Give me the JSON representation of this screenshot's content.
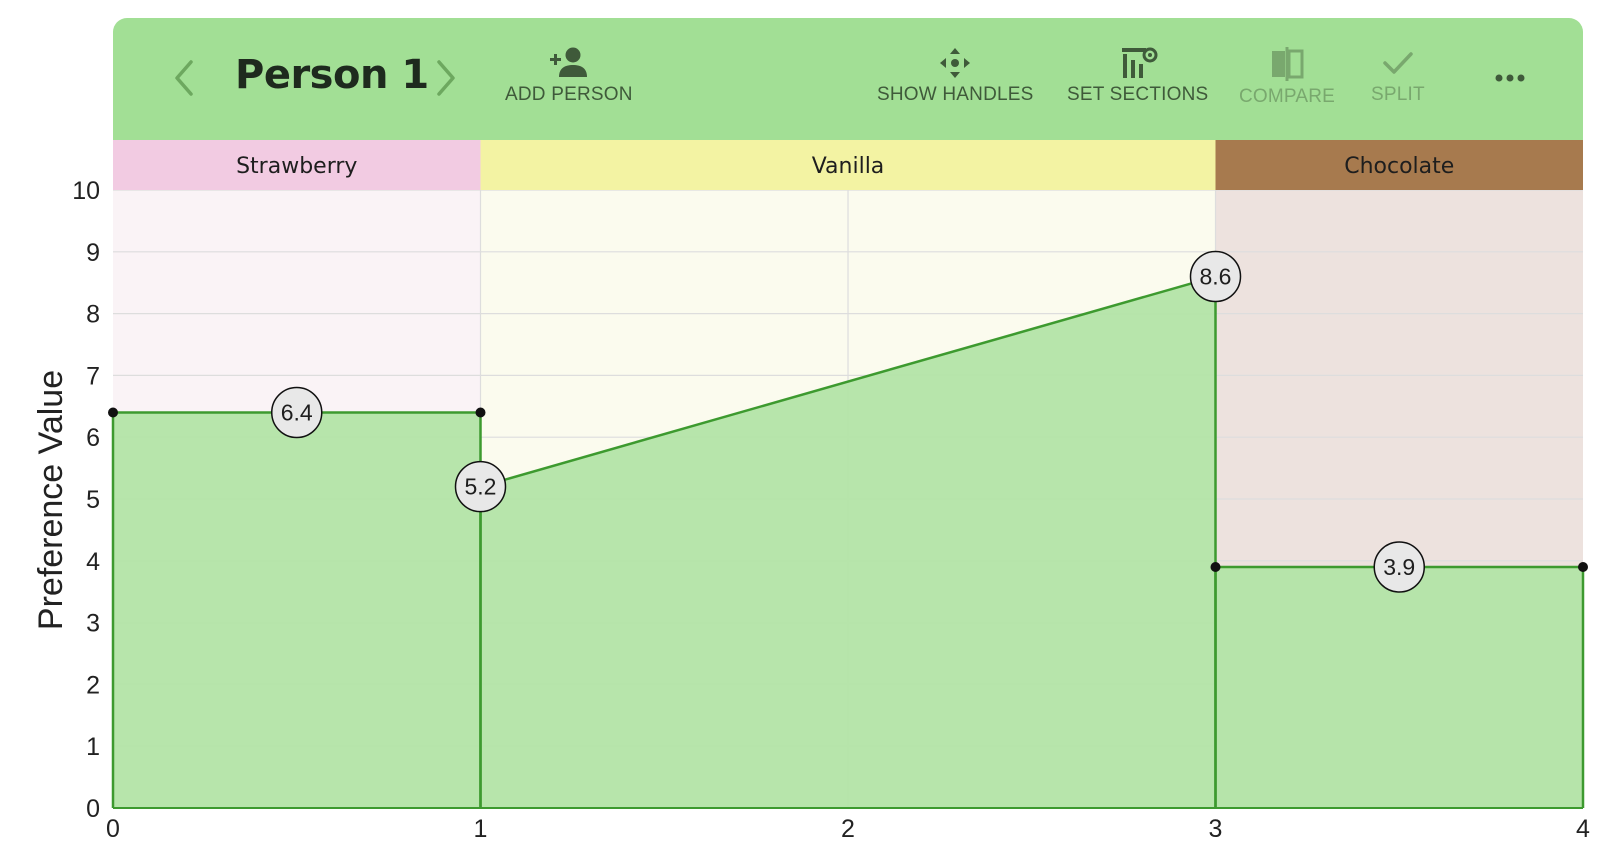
{
  "toolbar": {
    "person_name": "Person 1",
    "prev_icon": "chevron-left-icon",
    "next_icon": "chevron-right-icon",
    "add_person_label": "ADD PERSON",
    "show_handles_label": "SHOW HANDLES",
    "set_sections_label": "SET SECTIONS",
    "compare_label": "COMPARE",
    "split_label": "SPLIT",
    "more_icon": "more-horizontal-icon",
    "background_color": "#a2df95"
  },
  "chart_data": {
    "type": "area",
    "ylabel": "Preference Value",
    "xlim": [
      0,
      4
    ],
    "ylim": [
      0,
      10
    ],
    "x_ticks": [
      "0",
      "1",
      "2",
      "3",
      "4"
    ],
    "y_ticks": [
      "0",
      "1",
      "2",
      "3",
      "4",
      "5",
      "6",
      "7",
      "8",
      "9",
      "10"
    ],
    "grid": true,
    "fill_color": "#b3e4a6",
    "line_color": "#3d9a2f",
    "sections": [
      {
        "label": "Strawberry",
        "start": 0,
        "end": 1,
        "header_color": "#f2cbe2",
        "bg_color": "#faf3f6"
      },
      {
        "label": "Vanilla",
        "start": 1,
        "end": 3,
        "header_color": "#f3f3a3",
        "bg_color": "#fbfbee"
      },
      {
        "label": "Chocolate",
        "start": 3,
        "end": 4,
        "header_color": "#a77a4e",
        "bg_color": "#ede2de"
      }
    ],
    "segments": [
      {
        "x": [
          0,
          1
        ],
        "y": [
          6.4,
          6.4
        ],
        "label": "6.4"
      },
      {
        "x": [
          1,
          3
        ],
        "y": [
          5.2,
          8.6
        ],
        "label_start": "5.2",
        "label_end": "8.6"
      },
      {
        "x": [
          3,
          4
        ],
        "y": [
          3.9,
          3.9
        ],
        "label": "3.9"
      }
    ]
  }
}
